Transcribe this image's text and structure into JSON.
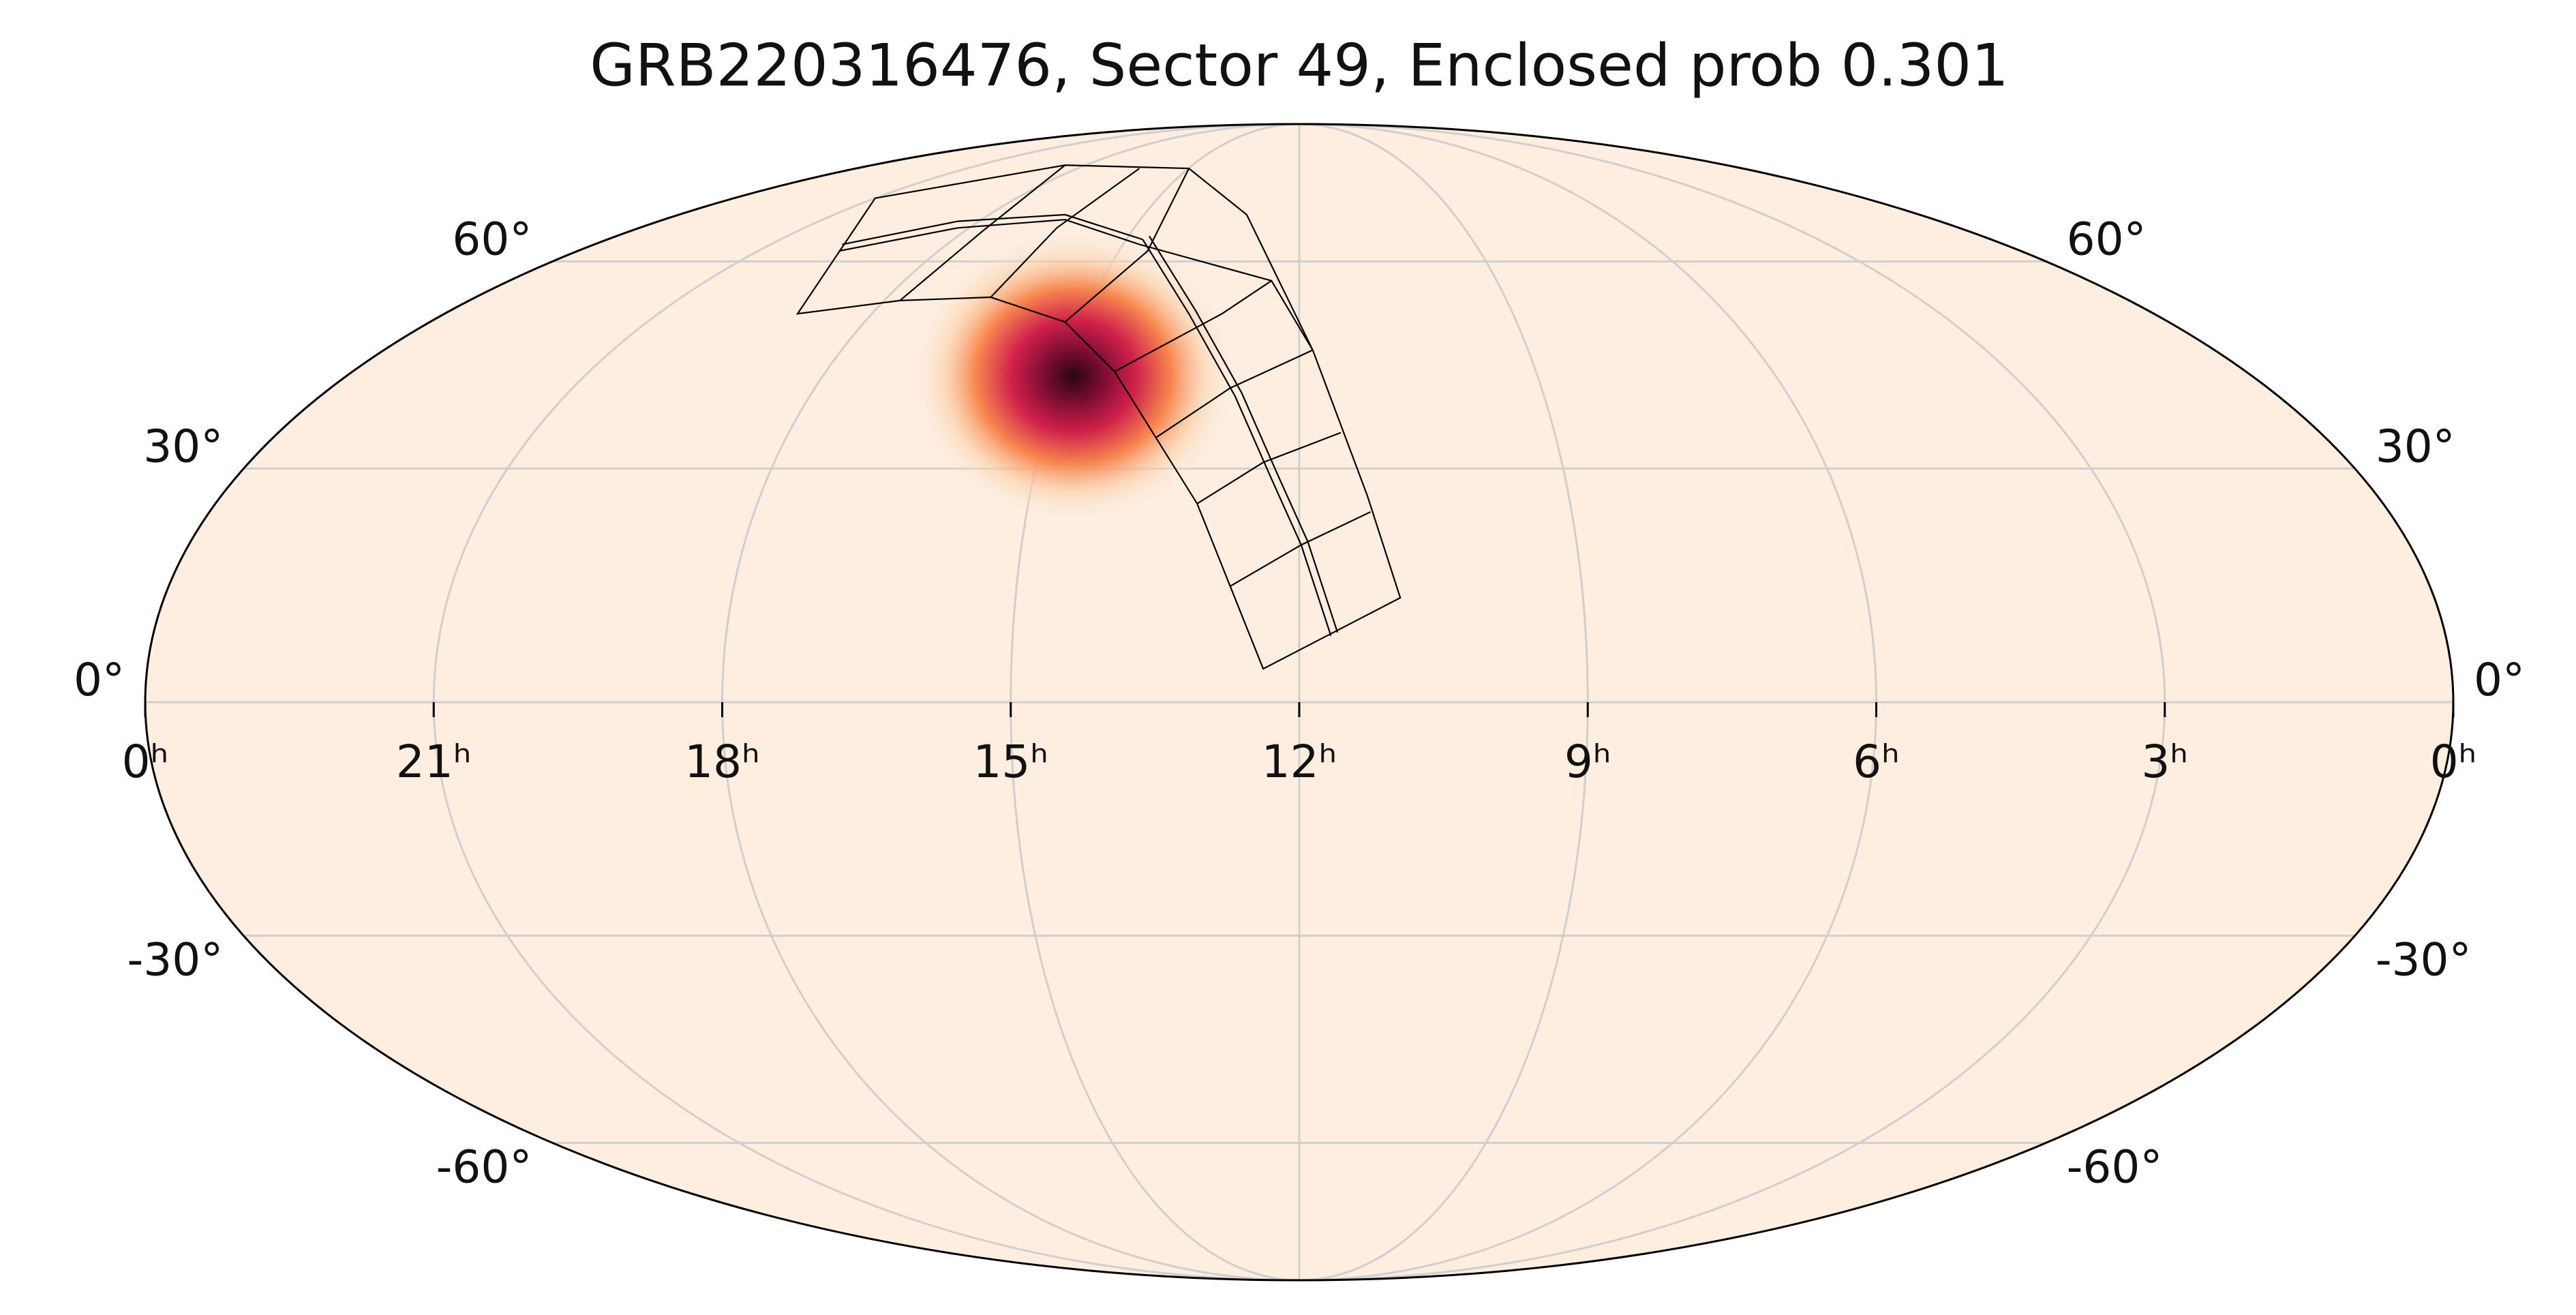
{
  "chart_data": {
    "type": "skymap",
    "projection": "mollweide",
    "title": "GRB220316476, Sector 49, Enclosed prob 0.301",
    "xticks": [
      {
        "value": 24,
        "label": "0ʰ"
      },
      {
        "value": 21,
        "label": "21ʰ"
      },
      {
        "value": 18,
        "label": "18ʰ"
      },
      {
        "value": 15,
        "label": "15ʰ"
      },
      {
        "value": 12,
        "label": "12ʰ"
      },
      {
        "value": 9,
        "label": "9ʰ"
      },
      {
        "value": 6,
        "label": "6ʰ"
      },
      {
        "value": 3,
        "label": "3ʰ"
      },
      {
        "value": 0,
        "label": "0ʰ"
      }
    ],
    "yticks": [
      {
        "value": 60,
        "label": "60°"
      },
      {
        "value": 30,
        "label": "30°"
      },
      {
        "value": 0,
        "label": "0°"
      },
      {
        "value": -30,
        "label": "-30°"
      },
      {
        "value": -60,
        "label": "-60°"
      }
    ],
    "xlim": [
      24,
      0
    ],
    "ylim": [
      -90,
      90
    ],
    "grid": true,
    "background": "#fdeee0"
  }
}
